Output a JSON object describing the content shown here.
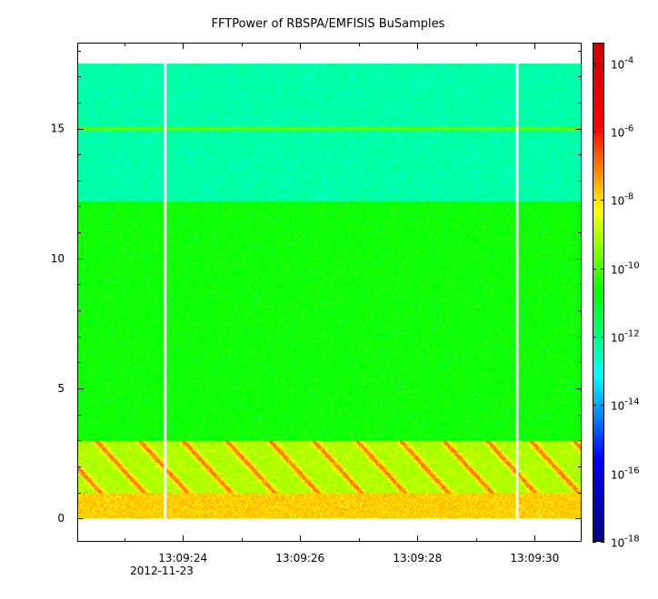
{
  "chart_data": {
    "type": "heatmap",
    "title": "FFTPower of RBSPA/EMFISIS  BuSamples",
    "xlabel": "",
    "ylabel": "",
    "x_ticks": [
      "13:09:24",
      "13:09:26",
      "13:09:28",
      "13:09:30"
    ],
    "x_tick_seconds": [
      24,
      26,
      28,
      30
    ],
    "x_range_seconds": [
      22.2,
      30.8
    ],
    "date_label": "2012-11-23",
    "y_ticks": [
      0,
      5,
      10,
      15
    ],
    "ylim": [
      -0.9,
      18.3
    ],
    "y_data_top": 17.5,
    "data_gaps_seconds": [
      23.7,
      29.7
    ],
    "colorbar": {
      "scale": "log",
      "ticks": [
        {
          "base": "10",
          "exp": "-4"
        },
        {
          "base": "10",
          "exp": "-6"
        },
        {
          "base": "10",
          "exp": "-8"
        },
        {
          "base": "10",
          "exp": "-10"
        },
        {
          "base": "10",
          "exp": "-12"
        },
        {
          "base": "10",
          "exp": "-14"
        },
        {
          "base": "10",
          "exp": "-16"
        },
        {
          "base": "10",
          "exp": "-18"
        }
      ],
      "exp_range": [
        -18,
        -3.4
      ],
      "colormap": [
        "#00007f",
        "#0000ff",
        "#00ffff",
        "#00ff00",
        "#ffff00",
        "#ff0000",
        "#d00000"
      ]
    },
    "bands": [
      {
        "freq_range": [
          12.2,
          17.5
        ],
        "log_power": -12.3
      },
      {
        "freq_range": [
          3.0,
          12.2
        ],
        "log_power": -10.6
      },
      {
        "freq_range": [
          1.0,
          3.0
        ],
        "log_power": -9.0
      },
      {
        "freq_range": [
          0.0,
          1.0
        ],
        "log_power": -7.8
      }
    ],
    "line_feature": {
      "freq": 15.0,
      "log_power": -9.8
    }
  }
}
